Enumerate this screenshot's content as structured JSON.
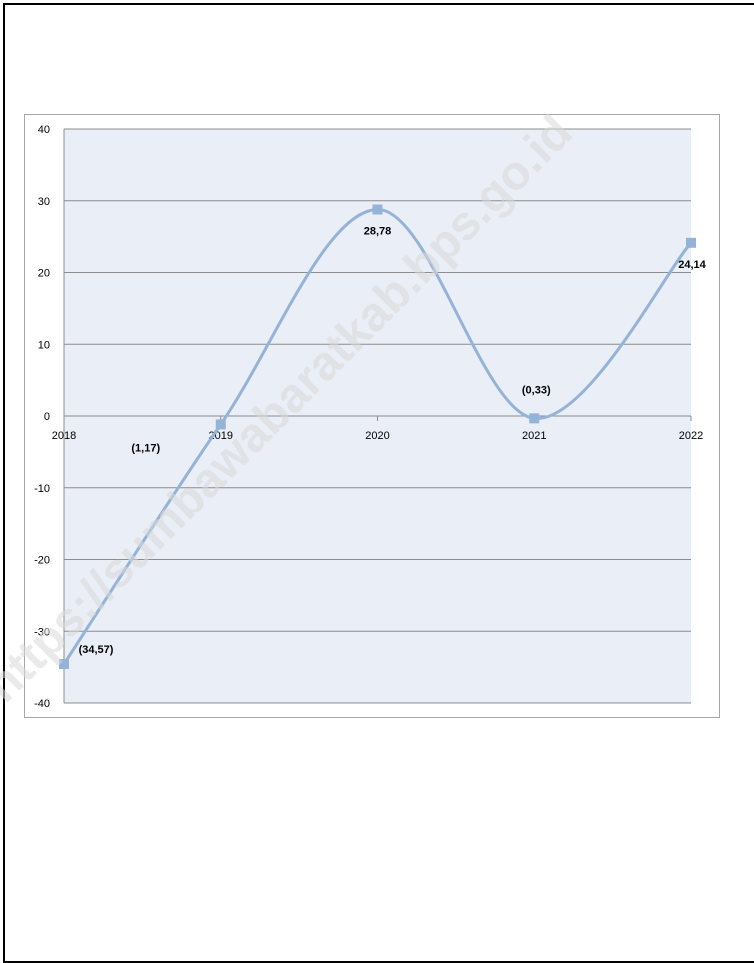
{
  "watermark": "https://sumbawabaratkab.bps.go.id",
  "chart_data": {
    "type": "line",
    "smooth": true,
    "x": [
      "2018",
      "2019",
      "2020",
      "2021",
      "2022"
    ],
    "series": [
      {
        "values": [
          -34.57,
          -1.17,
          28.78,
          -0.33,
          24.14
        ]
      }
    ],
    "data_labels": [
      "(34,57)",
      "(1,17)",
      "28,78",
      "(0,33)",
      "24,14"
    ],
    "yticks": [
      "40",
      "30",
      "20",
      "10",
      "0",
      "-10",
      "-20",
      "-30",
      "-40"
    ],
    "ylim": [
      -40,
      40
    ],
    "grid": true,
    "legend": "none",
    "colors": {
      "line": "#95b3d7",
      "marker": "#95b3d7",
      "plot_bg": "#e9eef7",
      "grid": "#8c8c8c"
    }
  }
}
